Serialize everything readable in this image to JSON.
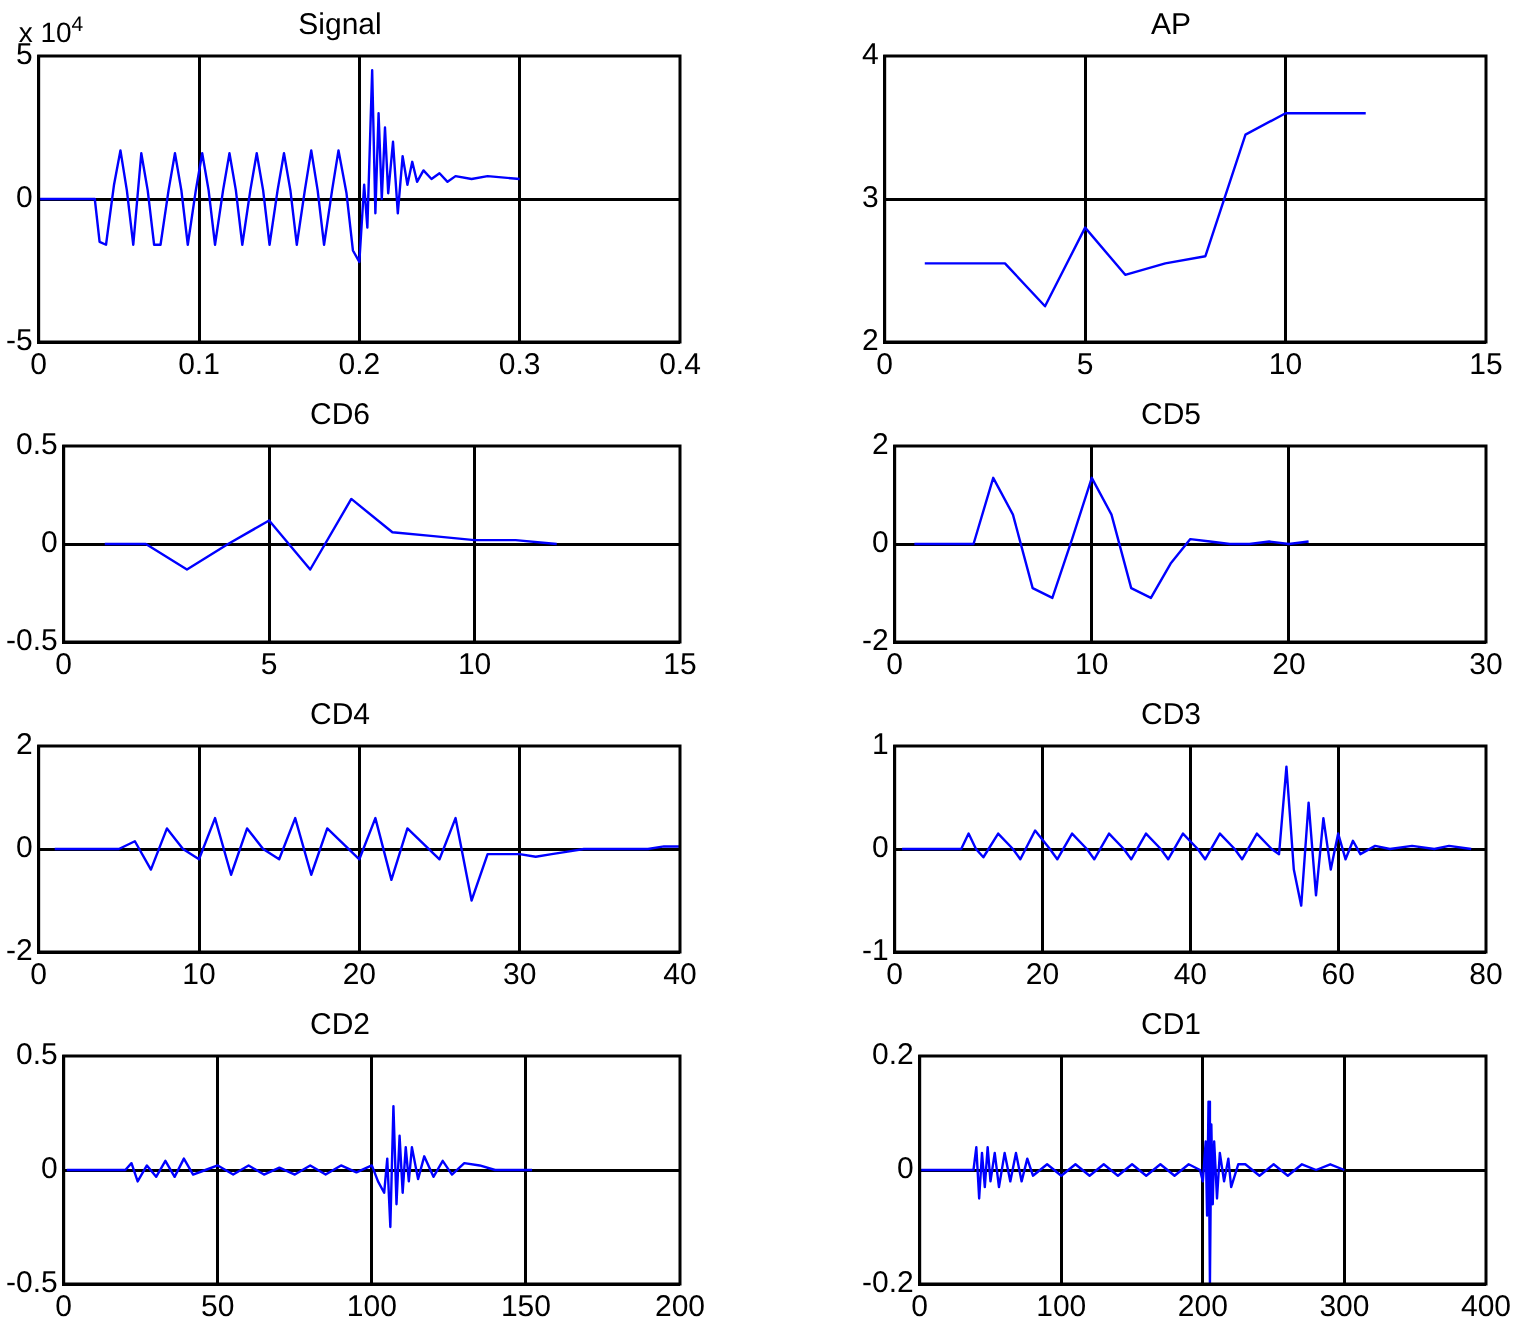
{
  "chart_data": [
    {
      "type": "line",
      "title": "Signal",
      "annotations": [
        "x 10$^{4}$"
      ],
      "color": "#0000ff",
      "grid": true,
      "xlim": [
        0,
        0.4
      ],
      "xticks": [
        0,
        0.1,
        0.2,
        0.3,
        0.4
      ],
      "ylim": [
        -5,
        5
      ],
      "yticks": [
        -5,
        0,
        5
      ],
      "x": [
        0,
        0.035,
        0.038,
        0.042,
        0.047,
        0.051,
        0.055,
        0.059,
        0.064,
        0.068,
        0.072,
        0.076,
        0.081,
        0.085,
        0.089,
        0.093,
        0.098,
        0.102,
        0.106,
        0.11,
        0.115,
        0.119,
        0.123,
        0.127,
        0.132,
        0.136,
        0.14,
        0.144,
        0.149,
        0.153,
        0.157,
        0.161,
        0.166,
        0.17,
        0.174,
        0.178,
        0.183,
        0.187,
        0.192,
        0.196,
        0.2,
        0.203,
        0.205,
        0.208,
        0.21,
        0.212,
        0.214,
        0.216,
        0.218,
        0.221,
        0.224,
        0.227,
        0.23,
        0.233,
        0.236,
        0.24,
        0.245,
        0.25,
        0.255,
        0.26,
        0.27,
        0.28,
        0.3
      ],
      "values": [
        0,
        0,
        -1.5,
        -1.6,
        0.5,
        1.7,
        0.3,
        -1.6,
        1.6,
        0.3,
        -1.6,
        -1.6,
        0.3,
        1.6,
        0.3,
        -1.6,
        0.3,
        1.6,
        0.3,
        -1.6,
        0.3,
        1.6,
        0.3,
        -1.6,
        0.3,
        1.6,
        0.3,
        -1.6,
        0.3,
        1.6,
        0.3,
        -1.6,
        0.3,
        1.7,
        0.3,
        -1.6,
        0.3,
        1.7,
        0.2,
        -1.8,
        -2.2,
        0.5,
        -1,
        4.5,
        -0.5,
        3,
        0,
        2.5,
        0.2,
        2,
        -0.5,
        1.5,
        0.5,
        1.3,
        0.6,
        1,
        0.7,
        0.9,
        0.6,
        0.8,
        0.7,
        0.8,
        0.7
      ]
    },
    {
      "type": "line",
      "title": "AP",
      "color": "#0000ff",
      "grid": true,
      "xlim": [
        0,
        15
      ],
      "xticks": [
        0,
        5,
        10,
        15
      ],
      "ylim": [
        2,
        4
      ],
      "yticks": [
        2,
        3,
        4
      ],
      "x": [
        1,
        2,
        3,
        4,
        5,
        6,
        7,
        8,
        9,
        10,
        11,
        12
      ],
      "values": [
        2.55,
        2.55,
        2.55,
        2.25,
        2.8,
        2.47,
        2.55,
        2.6,
        3.45,
        3.6,
        3.6,
        3.6
      ]
    },
    {
      "type": "line",
      "title": "CD6",
      "color": "#0000ff",
      "grid": true,
      "xlim": [
        0,
        15
      ],
      "xticks": [
        0,
        5,
        10,
        15
      ],
      "ylim": [
        -0.5,
        0.5
      ],
      "yticks": [
        -0.5,
        0,
        0.5
      ],
      "x": [
        1,
        2,
        3,
        4,
        5,
        6,
        7,
        8,
        9,
        10,
        11,
        12
      ],
      "values": [
        0,
        0,
        -0.13,
        0,
        0.12,
        -0.13,
        0.23,
        0.06,
        0.04,
        0.02,
        0.02,
        0
      ]
    },
    {
      "type": "line",
      "title": "CD5",
      "color": "#0000ff",
      "grid": true,
      "xlim": [
        0,
        30
      ],
      "xticks": [
        0,
        10,
        20,
        30
      ],
      "ylim": [
        -2,
        2
      ],
      "yticks": [
        -2,
        0,
        2
      ],
      "x": [
        1,
        2,
        3,
        4,
        5,
        6,
        7,
        8,
        9,
        10,
        11,
        12,
        13,
        14,
        15,
        16,
        17,
        18,
        19,
        20,
        21
      ],
      "values": [
        0,
        0,
        0,
        0,
        1.35,
        0.6,
        -0.9,
        -1.1,
        0.1,
        1.35,
        0.6,
        -0.9,
        -1.1,
        -0.4,
        0.1,
        0.05,
        0,
        0,
        0.05,
        0,
        0.05
      ]
    },
    {
      "type": "line",
      "title": "CD4",
      "color": "#0000ff",
      "grid": true,
      "xlim": [
        0,
        40
      ],
      "xticks": [
        0,
        10,
        20,
        30,
        40
      ],
      "ylim": [
        -2,
        2
      ],
      "yticks": [
        -2,
        0,
        2
      ],
      "x": [
        1,
        5,
        6,
        7,
        8,
        9,
        10,
        11,
        12,
        13,
        14,
        15,
        16,
        17,
        18,
        19,
        20,
        21,
        22,
        23,
        24,
        25,
        26,
        27,
        28,
        29,
        30,
        31,
        32,
        33,
        34,
        38,
        39,
        40
      ],
      "values": [
        0,
        0,
        0.15,
        -0.4,
        0.4,
        0,
        -0.2,
        0.6,
        -0.5,
        0.4,
        0,
        -0.2,
        0.6,
        -0.5,
        0.4,
        0.1,
        -0.2,
        0.6,
        -0.6,
        0.4,
        0.1,
        -0.2,
        0.6,
        -1,
        -0.1,
        -0.1,
        -0.1,
        -0.15,
        -0.1,
        -0.05,
        0,
        0,
        0.05,
        0.05
      ]
    },
    {
      "type": "line",
      "title": "CD3",
      "color": "#0000ff",
      "grid": true,
      "xlim": [
        0,
        80
      ],
      "xticks": [
        0,
        20,
        40,
        60,
        80
      ],
      "ylim": [
        -1,
        1
      ],
      "yticks": [
        -1,
        0,
        1
      ],
      "x": [
        1,
        9,
        10,
        11,
        12,
        14,
        16,
        17,
        19,
        21,
        22,
        24,
        26,
        27,
        29,
        31,
        32,
        34,
        36,
        37,
        39,
        41,
        42,
        44,
        46,
        47,
        49,
        51,
        52,
        53,
        54,
        55,
        56,
        57,
        58,
        59,
        60,
        61,
        62,
        63,
        65,
        67,
        70,
        73,
        75,
        78
      ],
      "values": [
        0,
        0,
        0.15,
        0,
        -0.08,
        0.15,
        0,
        -0.1,
        0.18,
        0,
        -0.1,
        0.15,
        0,
        -0.1,
        0.15,
        0,
        -0.1,
        0.15,
        0,
        -0.1,
        0.15,
        0,
        -0.1,
        0.15,
        0,
        -0.1,
        0.15,
        0,
        -0.05,
        0.8,
        -0.2,
        -0.55,
        0.45,
        -0.45,
        0.3,
        -0.2,
        0.15,
        -0.1,
        0.08,
        -0.05,
        0.03,
        0,
        0.03,
        0,
        0.03,
        0
      ]
    },
    {
      "type": "line",
      "title": "CD2",
      "color": "#0000ff",
      "grid": true,
      "xlim": [
        0,
        200
      ],
      "xticks": [
        0,
        50,
        100,
        150,
        200
      ],
      "ylim": [
        -0.5,
        0.5
      ],
      "yticks": [
        -0.5,
        0,
        0.5
      ],
      "x": [
        1,
        20,
        22,
        24,
        27,
        30,
        33,
        36,
        39,
        42,
        46,
        50,
        55,
        60,
        65,
        70,
        75,
        80,
        85,
        90,
        95,
        100,
        102,
        104,
        105,
        106,
        107,
        108,
        109,
        110,
        111,
        112,
        113,
        115,
        117,
        120,
        123,
        126,
        130,
        135,
        140,
        152
      ],
      "values": [
        0,
        0,
        0.03,
        -0.05,
        0.02,
        -0.03,
        0.04,
        -0.03,
        0.05,
        -0.02,
        0,
        0.02,
        -0.02,
        0.02,
        -0.02,
        0.01,
        -0.02,
        0.02,
        -0.02,
        0.02,
        -0.01,
        0.02,
        -0.05,
        -0.1,
        0.05,
        -0.25,
        0.28,
        -0.15,
        0.15,
        -0.1,
        0.1,
        -0.05,
        0.1,
        -0.04,
        0.06,
        -0.03,
        0.04,
        -0.02,
        0.03,
        0.02,
        0,
        0
      ]
    },
    {
      "type": "line",
      "title": "CD1",
      "color": "#0000ff",
      "grid": true,
      "xlim": [
        0,
        400
      ],
      "xticks": [
        0,
        100,
        200,
        300,
        400
      ],
      "ylim": [
        -0.2,
        0.2
      ],
      "yticks": [
        -0.2,
        0,
        0.2
      ],
      "x": [
        1,
        38,
        40,
        42,
        44,
        46,
        48,
        50,
        53,
        56,
        60,
        64,
        68,
        72,
        76,
        80,
        90,
        100,
        110,
        120,
        130,
        140,
        150,
        160,
        170,
        180,
        190,
        198,
        200,
        202,
        203,
        204,
        205,
        206,
        207,
        208,
        210,
        212,
        215,
        218,
        220,
        225,
        230,
        240,
        250,
        260,
        270,
        280,
        290,
        300
      ],
      "values": [
        0,
        0,
        0.04,
        -0.05,
        0.03,
        -0.03,
        0.04,
        -0.02,
        0.03,
        -0.03,
        0.03,
        -0.02,
        0.03,
        -0.02,
        0.02,
        -0.01,
        0.01,
        -0.01,
        0.01,
        -0.01,
        0.01,
        -0.01,
        0.01,
        -0.01,
        0.01,
        -0.01,
        0.01,
        0,
        -0.02,
        0.05,
        -0.08,
        0.12,
        -0.2,
        0.08,
        -0.06,
        0.05,
        -0.05,
        0.03,
        -0.02,
        0.02,
        -0.03,
        0.01,
        0.01,
        -0.01,
        0.01,
        -0.01,
        0.01,
        0,
        0.01,
        0
      ]
    }
  ]
}
